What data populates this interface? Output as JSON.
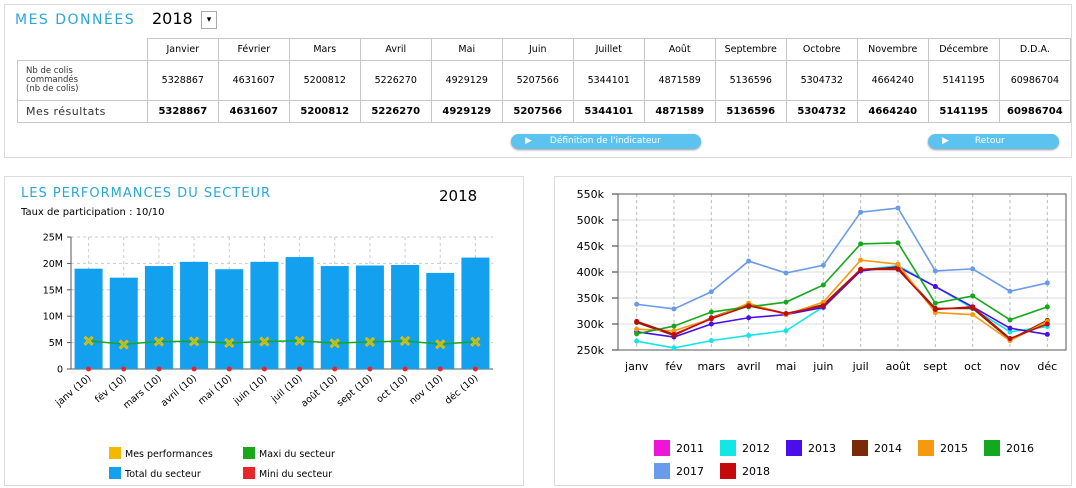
{
  "header": {
    "title": "MES DONNÉES",
    "year": "2018"
  },
  "table": {
    "columns": [
      "Janvier",
      "Février",
      "Mars",
      "Avril",
      "Mai",
      "Juin",
      "Juillet",
      "Août",
      "Septembre",
      "Octobre",
      "Novembre",
      "Décembre",
      "D.D.A."
    ],
    "rows": [
      {
        "label": "Nb de colis commandés (nb de colis)",
        "values": [
          5328867,
          4631607,
          5200812,
          5226270,
          4929129,
          5207566,
          5344101,
          4871589,
          5136596,
          5304732,
          4664240,
          5141195,
          60986704
        ]
      },
      {
        "label": "Mes résultats",
        "values": [
          5328867,
          4631607,
          5200812,
          5226270,
          4929129,
          5207566,
          5344101,
          4871589,
          5136596,
          5304732,
          4664240,
          5141195,
          60986704
        ]
      }
    ]
  },
  "buttons": [
    "Définition de l'indicateur",
    "Retour"
  ],
  "chart_data": [
    {
      "type": "bar",
      "title": "LES PERFORMANCES DU SECTEUR",
      "year_label": "2018",
      "subtitle": "Taux de participation : 10/10",
      "categories": [
        "janv (10)",
        "fév (10)",
        "mars (10)",
        "avril (10)",
        "mai (10)",
        "juin (10)",
        "juil (10)",
        "août (10)",
        "sept (10)",
        "oct (10)",
        "nov (10)",
        "déc (10)"
      ],
      "series": [
        {
          "name": "Mes performances",
          "color": "#f5b800",
          "mark": "cross",
          "values": [
            5328867,
            4631607,
            5200812,
            5226270,
            4929129,
            5207566,
            5344101,
            4871589,
            5136596,
            5304732,
            4664240,
            5141195
          ]
        },
        {
          "name": "Maxi du secteur",
          "color": "#1aa81a",
          "mark": "line",
          "values": [
            5330000,
            4700000,
            5200000,
            5230000,
            4930000,
            5210000,
            5340000,
            4900000,
            5140000,
            5300000,
            4700000,
            5150000
          ]
        },
        {
          "name": "Total du secteur",
          "color": "#13a0ee",
          "mark": "bar",
          "values": [
            19000000,
            17300000,
            19500000,
            20300000,
            18900000,
            20300000,
            21200000,
            19500000,
            19600000,
            19700000,
            18200000,
            21100000
          ]
        },
        {
          "name": "Mini du secteur",
          "color": "#e8252b",
          "mark": "point",
          "values": [
            0,
            0,
            0,
            0,
            0,
            0,
            0,
            0,
            0,
            0,
            0,
            0
          ]
        }
      ],
      "ylim": [
        0,
        25000000
      ],
      "yticks": [
        0,
        {
          "value": 5000000,
          "label": "5M"
        },
        {
          "value": 10000000,
          "label": "10M"
        },
        {
          "value": 15000000,
          "label": "15M"
        },
        {
          "value": 20000000,
          "label": "20M"
        },
        {
          "value": 25000000,
          "label": "25M"
        }
      ],
      "grid": true,
      "legend": "bottom"
    },
    {
      "type": "line",
      "categories": [
        "janv",
        "fév",
        "mars",
        "avril",
        "mai",
        "juin",
        "juil",
        "août",
        "sept",
        "oct",
        "nov",
        "déc"
      ],
      "series": [
        {
          "name": "2011",
          "color": "#ee14d8",
          "values": [
            null,
            null,
            null,
            null,
            null,
            null,
            null,
            null,
            null,
            null,
            null,
            null
          ]
        },
        {
          "name": "2012",
          "color": "#14e6e6",
          "values": [
            267000,
            254000,
            268000,
            278000,
            287000,
            333000,
            404000,
            412000,
            372000,
            330000,
            285000,
            295000
          ]
        },
        {
          "name": "2013",
          "color": "#4a0ee8",
          "values": [
            285000,
            275000,
            300000,
            312000,
            318000,
            332000,
            402000,
            410000,
            372000,
            333000,
            292000,
            280000
          ]
        },
        {
          "name": "2014",
          "color": "#7a2a08",
          "values": [
            303000,
            278000,
            312000,
            338000,
            320000,
            337000,
            405000,
            408000,
            330000,
            330000,
            270000,
            307000
          ]
        },
        {
          "name": "2015",
          "color": "#f59a10",
          "values": [
            290000,
            287000,
            310000,
            340000,
            318000,
            342000,
            423000,
            415000,
            322000,
            318000,
            268000,
            305000
          ]
        },
        {
          "name": "2016",
          "color": "#14a81e",
          "values": [
            281000,
            296000,
            323000,
            333000,
            342000,
            375000,
            454000,
            456000,
            340000,
            354000,
            308000,
            333000
          ]
        },
        {
          "name": "2017",
          "color": "#6a9bea",
          "values": [
            338000,
            329000,
            362000,
            421000,
            398000,
            413000,
            515000,
            523000,
            402000,
            406000,
            363000,
            379000
          ]
        },
        {
          "name": "2018",
          "color": "#c40a0a",
          "values": [
            305000,
            280000,
            310000,
            335000,
            320000,
            335000,
            405000,
            405000,
            328000,
            333000,
            272000,
            300000
          ]
        }
      ],
      "ylim": [
        250000,
        550000
      ],
      "yticks": [
        {
          "value": 250000,
          "label": "250k"
        },
        {
          "value": 300000,
          "label": "300k"
        },
        {
          "value": 350000,
          "label": "350k"
        },
        {
          "value": 400000,
          "label": "400k"
        },
        {
          "value": 450000,
          "label": "450k"
        },
        {
          "value": 500000,
          "label": "500k"
        },
        {
          "value": 550000,
          "label": "550k"
        }
      ],
      "grid": true,
      "legend": "bottom"
    }
  ]
}
